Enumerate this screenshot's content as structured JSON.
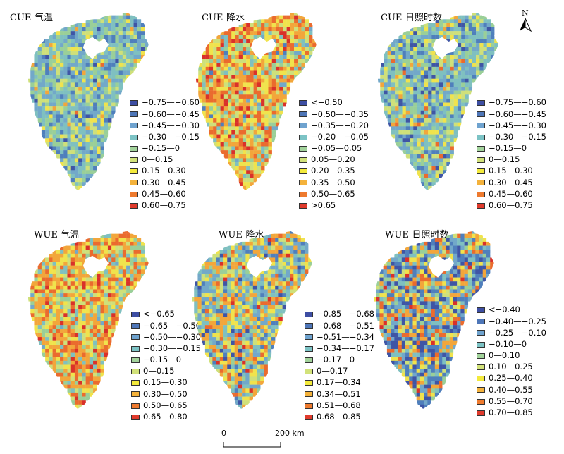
{
  "panels": [
    {
      "title": "CUE-气温",
      "palette": [
        "#3f55a5",
        "#4f7fbc",
        "#72a8c9",
        "#7fc0c0",
        "#9acf98",
        "#cfe07a",
        "#f0e34d",
        "#f2a63b",
        "#ea6b2e",
        "#d9312a"
      ],
      "weights": [
        0.02,
        0.1,
        0.22,
        0.26,
        0.2,
        0.12,
        0.05,
        0.02,
        0.01,
        0.0
      ],
      "legend": [
        {
          "label": "−0.75—−0.60",
          "color": "#3d4ea3"
        },
        {
          "label": "−0.60—−0.45",
          "color": "#4e76b8"
        },
        {
          "label": "−0.45—−0.30",
          "color": "#6fa3cf"
        },
        {
          "label": "−0.30—−0.15",
          "color": "#7cc3c5"
        },
        {
          "label": "−0.15—0",
          "color": "#a2d39b"
        },
        {
          "label": "0—0.15",
          "color": "#d2e27a"
        },
        {
          "label": "0.15—0.30",
          "color": "#f3ea3c"
        },
        {
          "label": "0.30—0.45",
          "color": "#f4b23b"
        },
        {
          "label": "0.45—0.60",
          "color": "#ee7a2e"
        },
        {
          "label": "0.60—0.75",
          "color": "#e03a2c"
        }
      ]
    },
    {
      "title": "CUE-降水",
      "palette": [
        "#3f55a5",
        "#4f7fbc",
        "#72a8c9",
        "#7fc0c0",
        "#9acf98",
        "#cfe07a",
        "#f0e34d",
        "#f2a63b",
        "#ea6b2e",
        "#d9312a"
      ],
      "weights": [
        0.0,
        0.01,
        0.03,
        0.06,
        0.08,
        0.14,
        0.2,
        0.24,
        0.18,
        0.06
      ],
      "legend": [
        {
          "label": "<−0.50",
          "color": "#3d4ea3"
        },
        {
          "label": "−0.50—−0.35",
          "color": "#4e76b8"
        },
        {
          "label": "−0.35—−0.20",
          "color": "#6fa3cf"
        },
        {
          "label": "−0.20—−0.05",
          "color": "#7cc3c5"
        },
        {
          "label": "−0.05—0.05",
          "color": "#a2d39b"
        },
        {
          "label": "0.05—0.20",
          "color": "#d2e27a"
        },
        {
          "label": "0.20—0.35",
          "color": "#f3ea3c"
        },
        {
          "label": "0.35—0.50",
          "color": "#f4b23b"
        },
        {
          "label": "0.50—0.65",
          "color": "#ee7a2e"
        },
        {
          "label": ">0.65",
          "color": "#e03a2c"
        }
      ]
    },
    {
      "title": "CUE-日照时数",
      "palette": [
        "#3f55a5",
        "#4f7fbc",
        "#72a8c9",
        "#7fc0c0",
        "#9acf98",
        "#cfe07a",
        "#f0e34d",
        "#f2a63b",
        "#ea6b2e",
        "#d9312a"
      ],
      "weights": [
        0.04,
        0.1,
        0.2,
        0.24,
        0.16,
        0.12,
        0.08,
        0.04,
        0.02,
        0.0
      ],
      "legend": [
        {
          "label": "−0.75—−0.60",
          "color": "#3d4ea3"
        },
        {
          "label": "−0.60—−0.45",
          "color": "#4e76b8"
        },
        {
          "label": "−0.45—−0.30",
          "color": "#6fa3cf"
        },
        {
          "label": "−0.30—−0.15",
          "color": "#7cc3c5"
        },
        {
          "label": "−0.15—0",
          "color": "#a2d39b"
        },
        {
          "label": "0—0.15",
          "color": "#d2e27a"
        },
        {
          "label": "0.15—0.30",
          "color": "#f3ea3c"
        },
        {
          "label": "0.30—0.45",
          "color": "#f4b23b"
        },
        {
          "label": "0.45—0.60",
          "color": "#ee7a2e"
        },
        {
          "label": "0.60—0.75",
          "color": "#e03a2c"
        }
      ]
    },
    {
      "title": "WUE-气温",
      "palette": [
        "#3f55a5",
        "#4f7fbc",
        "#72a8c9",
        "#7fc0c0",
        "#9acf98",
        "#cfe07a",
        "#f0e34d",
        "#f2a63b",
        "#ea6b2e",
        "#d9312a"
      ],
      "weights": [
        0.0,
        0.0,
        0.02,
        0.1,
        0.1,
        0.12,
        0.16,
        0.26,
        0.18,
        0.06
      ],
      "legend": [
        {
          "label": "<−0.65",
          "color": "#3d4ea3"
        },
        {
          "label": "−0.65—−0.50",
          "color": "#4e76b8"
        },
        {
          "label": "−0.50—−0.30",
          "color": "#6fa3cf"
        },
        {
          "label": "−0.30—−0.15",
          "color": "#7cc3c5"
        },
        {
          "label": "−0.15—0",
          "color": "#a2d39b"
        },
        {
          "label": "0—0.15",
          "color": "#d2e27a"
        },
        {
          "label": "0.15—0.30",
          "color": "#f3ea3c"
        },
        {
          "label": "0.30—0.50",
          "color": "#f4b23b"
        },
        {
          "label": "0.50—0.65",
          "color": "#ee7a2e"
        },
        {
          "label": "0.65—0.80",
          "color": "#e03a2c"
        }
      ]
    },
    {
      "title": "WUE-降水",
      "palette": [
        "#3f55a5",
        "#4f7fbc",
        "#72a8c9",
        "#7fc0c0",
        "#9acf98",
        "#cfe07a",
        "#f0e34d",
        "#f2a63b",
        "#ea6b2e",
        "#d9312a"
      ],
      "weights": [
        0.04,
        0.08,
        0.14,
        0.14,
        0.08,
        0.1,
        0.14,
        0.18,
        0.08,
        0.02
      ],
      "legend": [
        {
          "label": "−0.85—−0.68",
          "color": "#3d4ea3"
        },
        {
          "label": "−0.68—−0.51",
          "color": "#4e76b8"
        },
        {
          "label": "−0.51—−0.34",
          "color": "#6fa3cf"
        },
        {
          "label": "−0.34—−0.17",
          "color": "#7cc3c5"
        },
        {
          "label": "−0.17—0",
          "color": "#a2d39b"
        },
        {
          "label": "0—0.17",
          "color": "#d2e27a"
        },
        {
          "label": "0.17—0.34",
          "color": "#f3ea3c"
        },
        {
          "label": "0.34—0.51",
          "color": "#f4b23b"
        },
        {
          "label": "0.51—0.68",
          "color": "#ee7a2e"
        },
        {
          "label": "0.68—0.85",
          "color": "#e03a2c"
        }
      ]
    },
    {
      "title": "WUE-日照时数",
      "palette": [
        "#3f55a5",
        "#4f7fbc",
        "#72a8c9",
        "#7fc0c0",
        "#9acf98",
        "#cfe07a",
        "#f0e34d",
        "#f2a63b",
        "#ea6b2e",
        "#d9312a"
      ],
      "weights": [
        0.14,
        0.16,
        0.12,
        0.1,
        0.06,
        0.08,
        0.1,
        0.14,
        0.08,
        0.02
      ],
      "legend": [
        {
          "label": "<−0.40",
          "color": "#3d4ea3"
        },
        {
          "label": "−0.40—−0.25",
          "color": "#4e76b8"
        },
        {
          "label": "−0.25—−0.10",
          "color": "#6fa3cf"
        },
        {
          "label": "−0.10—0",
          "color": "#7cc3c5"
        },
        {
          "label": "0—0.10",
          "color": "#a2d39b"
        },
        {
          "label": "0.10—0.25",
          "color": "#d2e27a"
        },
        {
          "label": "0.25—0.40",
          "color": "#f3ea3c"
        },
        {
          "label": "0.40—0.55",
          "color": "#f4b23b"
        },
        {
          "label": "0.55—0.70",
          "color": "#ee7a2e"
        },
        {
          "label": "0.70—0.85",
          "color": "#e03a2c"
        }
      ]
    }
  ],
  "north_arrow": {
    "label": "N"
  },
  "scale_bar": {
    "start_label": "0",
    "end_label": "200 km"
  }
}
